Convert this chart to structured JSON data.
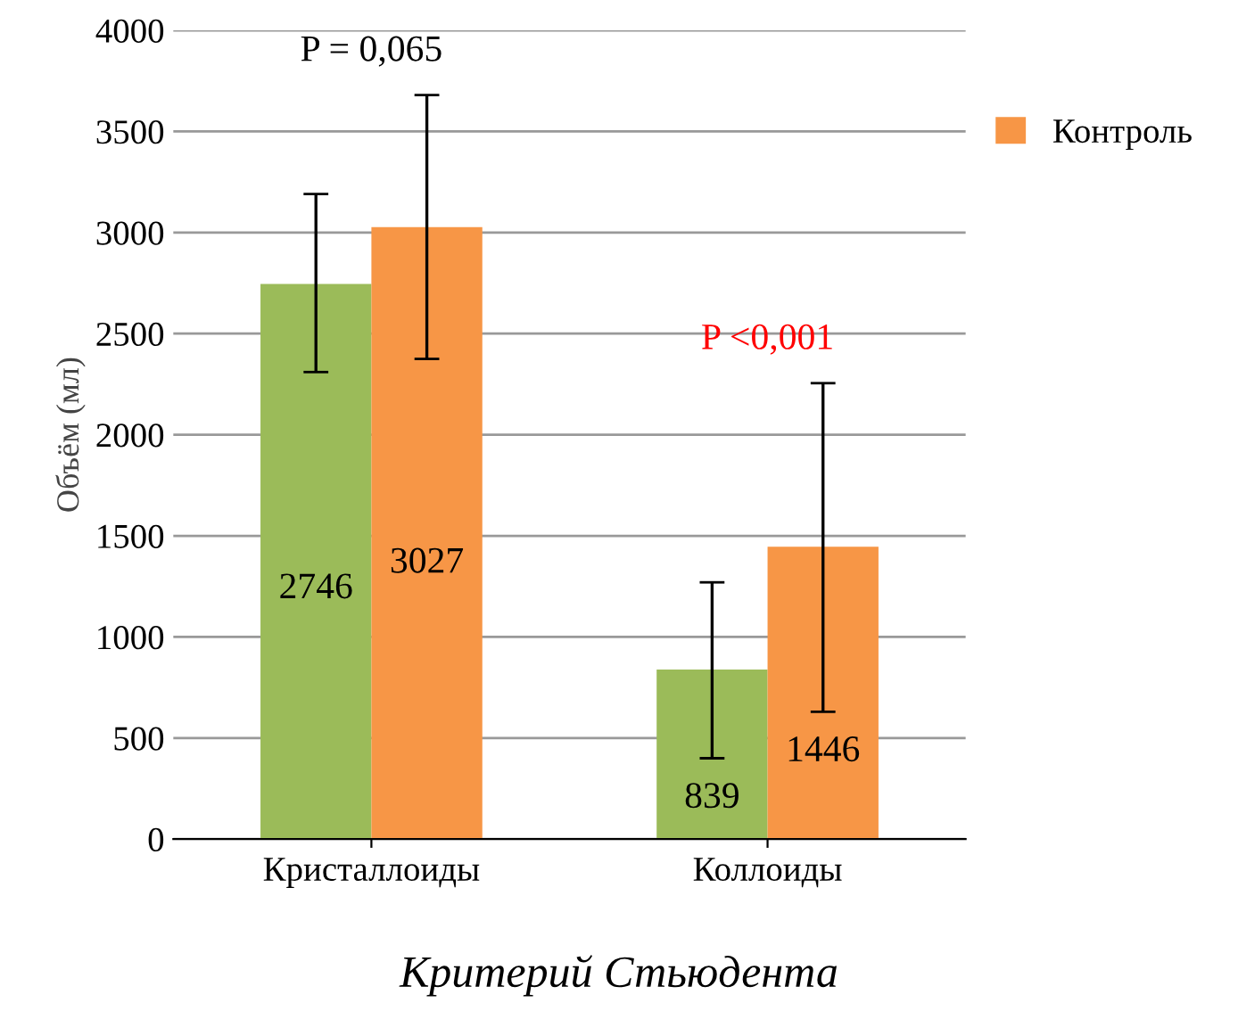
{
  "chart_data": {
    "type": "bar",
    "ylabel": "Объём (мл)",
    "categories": [
      "Кристаллоиды",
      "Коллоиды"
    ],
    "series": [
      {
        "color": "#9bbb59",
        "values": [
          2746,
          839
        ],
        "errors": [
          [
            2310,
            3190
          ],
          [
            400,
            1270
          ]
        ]
      },
      {
        "name": "Контроль",
        "color": "#f79646",
        "values": [
          3027,
          1446
        ],
        "errors": [
          [
            2375,
            3680
          ],
          [
            630,
            2255
          ]
        ]
      }
    ],
    "ylim": [
      0,
      4000
    ],
    "yticks": [
      0,
      500,
      1000,
      1500,
      2000,
      2500,
      3000,
      3500,
      4000
    ],
    "grid": "y",
    "legend": "right",
    "data_labels": true,
    "annotations": [
      "P = 0,065",
      "P <0,001",
      "Критерий Стьюдента"
    ]
  }
}
